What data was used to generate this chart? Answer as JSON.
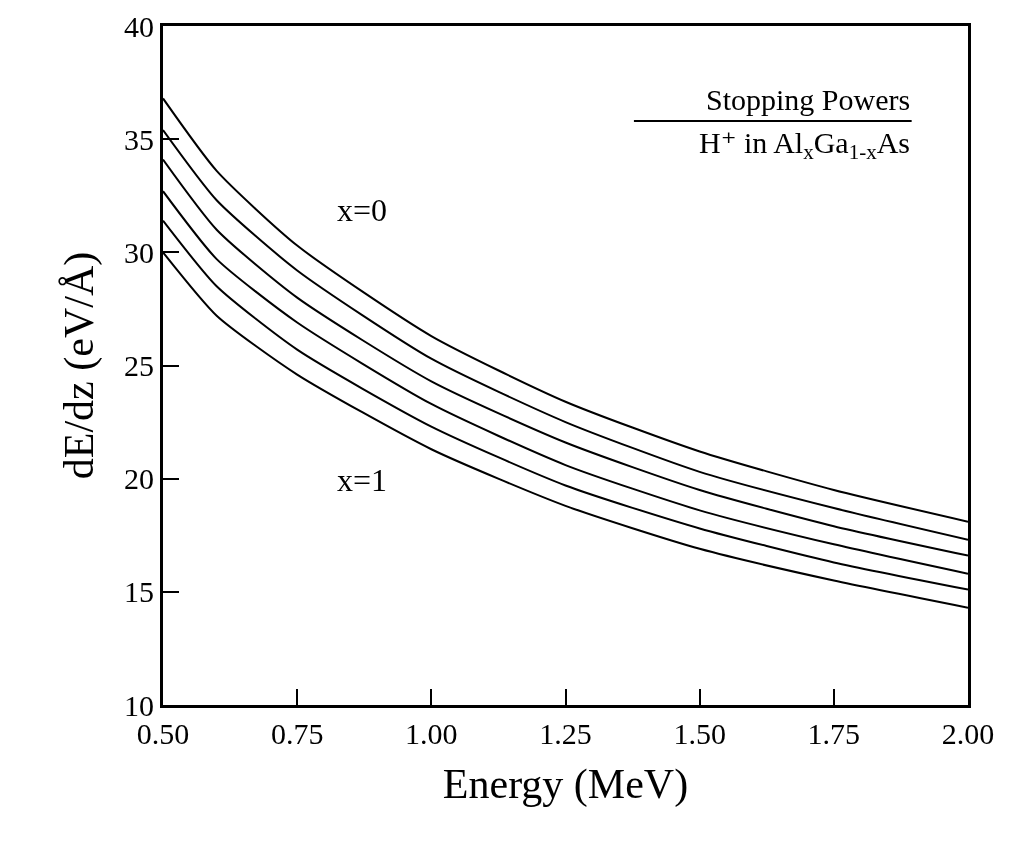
{
  "chart_data": {
    "type": "line",
    "title": "Stopping Powers",
    "subtitle": "H⁺ in Al$_{x}$Ga$_{1-x}$As",
    "xlabel": "Energy (MeV)",
    "ylabel": "dE/dz (eV/Å)",
    "x": [
      0.5,
      0.6,
      0.75,
      1.0,
      1.25,
      1.5,
      1.75,
      2.0
    ],
    "series": [
      {
        "color": "#000000",
        "values": [
          36.8,
          33.6,
          30.3,
          26.3,
          23.4,
          21.2,
          19.5,
          18.1
        ]
      },
      {
        "color": "#000000",
        "values": [
          35.4,
          32.3,
          29.2,
          25.3,
          22.5,
          20.3,
          18.7,
          17.3
        ]
      },
      {
        "color": "#000000",
        "values": [
          34.1,
          31.0,
          28.0,
          24.3,
          21.6,
          19.5,
          17.9,
          16.6
        ]
      },
      {
        "color": "#000000",
        "values": [
          32.7,
          29.7,
          26.9,
          23.3,
          20.6,
          18.6,
          17.1,
          15.8
        ]
      },
      {
        "color": "#000000",
        "values": [
          31.4,
          28.5,
          25.7,
          22.3,
          19.7,
          17.8,
          16.3,
          15.1
        ]
      },
      {
        "color": "#000000",
        "values": [
          30.0,
          27.2,
          24.6,
          21.3,
          18.8,
          16.9,
          15.5,
          14.3
        ]
      }
    ],
    "annotations": [
      "x=0",
      "x=1"
    ],
    "xlim": [
      0.5,
      2.0
    ],
    "ylim": [
      10,
      40
    ],
    "xticks": [
      {
        "value": 0.5,
        "label": "0.50"
      },
      {
        "value": 0.75,
        "label": "0.75"
      },
      {
        "value": 1.0,
        "label": "1.00"
      },
      {
        "value": 1.25,
        "label": "1.25"
      },
      {
        "value": 1.5,
        "label": "1.50"
      },
      {
        "value": 1.75,
        "label": "1.75"
      },
      {
        "value": 2.0,
        "label": "2.00"
      }
    ],
    "yticks": [
      10,
      15,
      20,
      25,
      30,
      35,
      40
    ],
    "grid": false,
    "marker": "none",
    "line_style": "solid"
  }
}
